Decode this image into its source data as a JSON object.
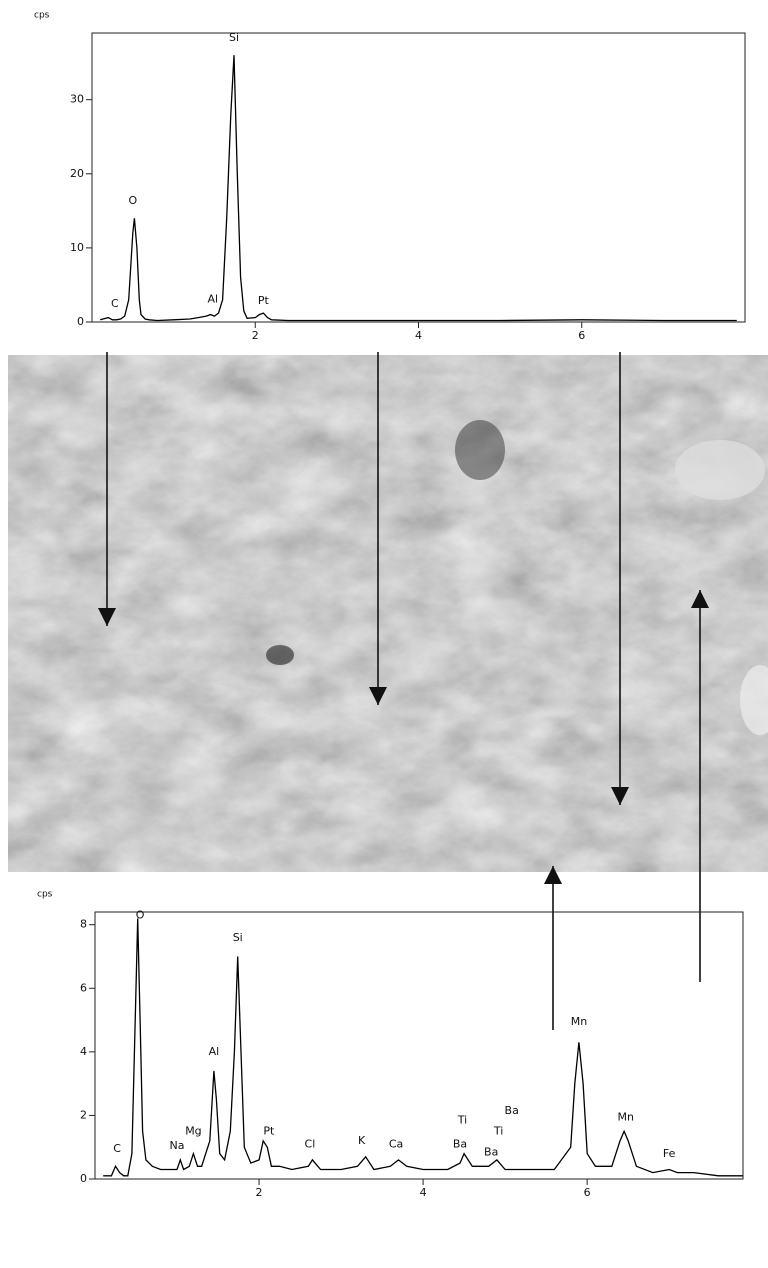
{
  "chart_data": [
    {
      "type": "line",
      "y_label": "cps",
      "xlim": [
        0,
        8
      ],
      "ylim": [
        0,
        39
      ],
      "xticks": [
        2,
        4,
        6
      ],
      "yticks": [
        0,
        10,
        20,
        30
      ],
      "series": [
        {
          "color": "#000000",
          "x": [
            0.1,
            0.2,
            0.25,
            0.3,
            0.35,
            0.4,
            0.45,
            0.5,
            0.52,
            0.55,
            0.58,
            0.6,
            0.65,
            0.7,
            0.8,
            1.0,
            1.2,
            1.3,
            1.4,
            1.45,
            1.5,
            1.55,
            1.6,
            1.65,
            1.7,
            1.74,
            1.78,
            1.82,
            1.86,
            1.9,
            2.0,
            2.05,
            2.1,
            2.15,
            2.2,
            2.4,
            3.0,
            4.0,
            5.0,
            6.0,
            7.0,
            7.9
          ],
          "values": [
            0.3,
            0.6,
            0.3,
            0.3,
            0.4,
            0.8,
            3,
            12,
            14,
            10,
            3,
            1,
            0.4,
            0.3,
            0.2,
            0.3,
            0.4,
            0.6,
            0.8,
            1.0,
            0.8,
            1.2,
            3,
            14,
            28,
            36,
            20,
            6,
            1.5,
            0.5,
            0.6,
            1.0,
            1.2,
            0.6,
            0.3,
            0.2,
            0.2,
            0.2,
            0.2,
            0.3,
            0.2,
            0.2
          ]
        }
      ],
      "annotations": [
        {
          "text": "C",
          "x": 0.28,
          "y": 1.6
        },
        {
          "text": "O",
          "x": 0.5,
          "y": 15.5
        },
        {
          "text": "Al",
          "x": 1.48,
          "y": 2.2
        },
        {
          "text": "Si",
          "x": 1.74,
          "y": 37.5
        },
        {
          "text": "Pt",
          "x": 2.1,
          "y": 2.0
        }
      ]
    },
    {
      "type": "line",
      "y_label": "cps",
      "xlim": [
        0,
        7.9
      ],
      "ylim": [
        0,
        8.4
      ],
      "xticks": [
        2,
        4,
        6
      ],
      "yticks": [
        0,
        2,
        4,
        6,
        8
      ],
      "series": [
        {
          "color": "#000000",
          "x": [
            0.1,
            0.2,
            0.25,
            0.3,
            0.35,
            0.4,
            0.45,
            0.5,
            0.52,
            0.55,
            0.58,
            0.62,
            0.7,
            0.8,
            0.9,
            1.0,
            1.04,
            1.08,
            1.15,
            1.2,
            1.25,
            1.3,
            1.4,
            1.45,
            1.48,
            1.52,
            1.58,
            1.65,
            1.7,
            1.74,
            1.78,
            1.82,
            1.9,
            2.0,
            2.05,
            2.1,
            2.15,
            2.25,
            2.4,
            2.6,
            2.65,
            2.75,
            3.0,
            3.2,
            3.3,
            3.4,
            3.6,
            3.7,
            3.8,
            4.0,
            4.3,
            4.45,
            4.5,
            4.6,
            4.8,
            4.9,
            5.0,
            5.3,
            5.6,
            5.8,
            5.85,
            5.9,
            5.95,
            6.0,
            6.1,
            6.3,
            6.4,
            6.45,
            6.5,
            6.6,
            6.8,
            7.0,
            7.1,
            7.3,
            7.6,
            7.9
          ],
          "values": [
            0.1,
            0.1,
            0.4,
            0.2,
            0.1,
            0.1,
            0.8,
            6,
            8.2,
            5,
            1.5,
            0.6,
            0.4,
            0.3,
            0.3,
            0.3,
            0.6,
            0.3,
            0.4,
            0.8,
            0.4,
            0.4,
            1.2,
            3.4,
            2.5,
            0.8,
            0.6,
            1.5,
            4,
            7,
            4,
            1,
            0.5,
            0.6,
            1.2,
            1.0,
            0.4,
            0.4,
            0.3,
            0.4,
            0.6,
            0.3,
            0.3,
            0.4,
            0.7,
            0.3,
            0.4,
            0.6,
            0.4,
            0.3,
            0.3,
            0.5,
            0.8,
            0.4,
            0.4,
            0.6,
            0.3,
            0.3,
            0.3,
            1.0,
            3,
            4.3,
            3,
            0.8,
            0.4,
            0.4,
            1.2,
            1.5,
            1.2,
            0.4,
            0.2,
            0.3,
            0.2,
            0.2,
            0.1,
            0.1
          ]
        }
      ],
      "annotations": [
        {
          "text": "C",
          "x": 0.27,
          "y": 0.75
        },
        {
          "text": "O",
          "x": 0.55,
          "y": 8.1
        },
        {
          "text": "Na",
          "x": 1.0,
          "y": 0.85
        },
        {
          "text": "Mg",
          "x": 1.2,
          "y": 1.3
        },
        {
          "text": "Al",
          "x": 1.45,
          "y": 3.8
        },
        {
          "text": "Si",
          "x": 1.74,
          "y": 7.4
        },
        {
          "text": "Pt",
          "x": 2.12,
          "y": 1.3
        },
        {
          "text": "Cl",
          "x": 2.62,
          "y": 0.9
        },
        {
          "text": "K",
          "x": 3.25,
          "y": 1.0
        },
        {
          "text": "Ca",
          "x": 3.67,
          "y": 0.9
        },
        {
          "text": "Ti",
          "x": 4.48,
          "y": 1.65
        },
        {
          "text": "Ba",
          "x": 4.45,
          "y": 0.9
        },
        {
          "text": "Ba",
          "x": 4.83,
          "y": 0.65
        },
        {
          "text": "Ti",
          "x": 4.92,
          "y": 1.3
        },
        {
          "text": "Ba",
          "x": 5.08,
          "y": 1.95
        },
        {
          "text": "Mn",
          "x": 5.9,
          "y": 4.75
        },
        {
          "text": "Mn",
          "x": 6.47,
          "y": 1.75
        },
        {
          "text": "Fe",
          "x": 7.0,
          "y": 0.6
        }
      ]
    }
  ]
}
